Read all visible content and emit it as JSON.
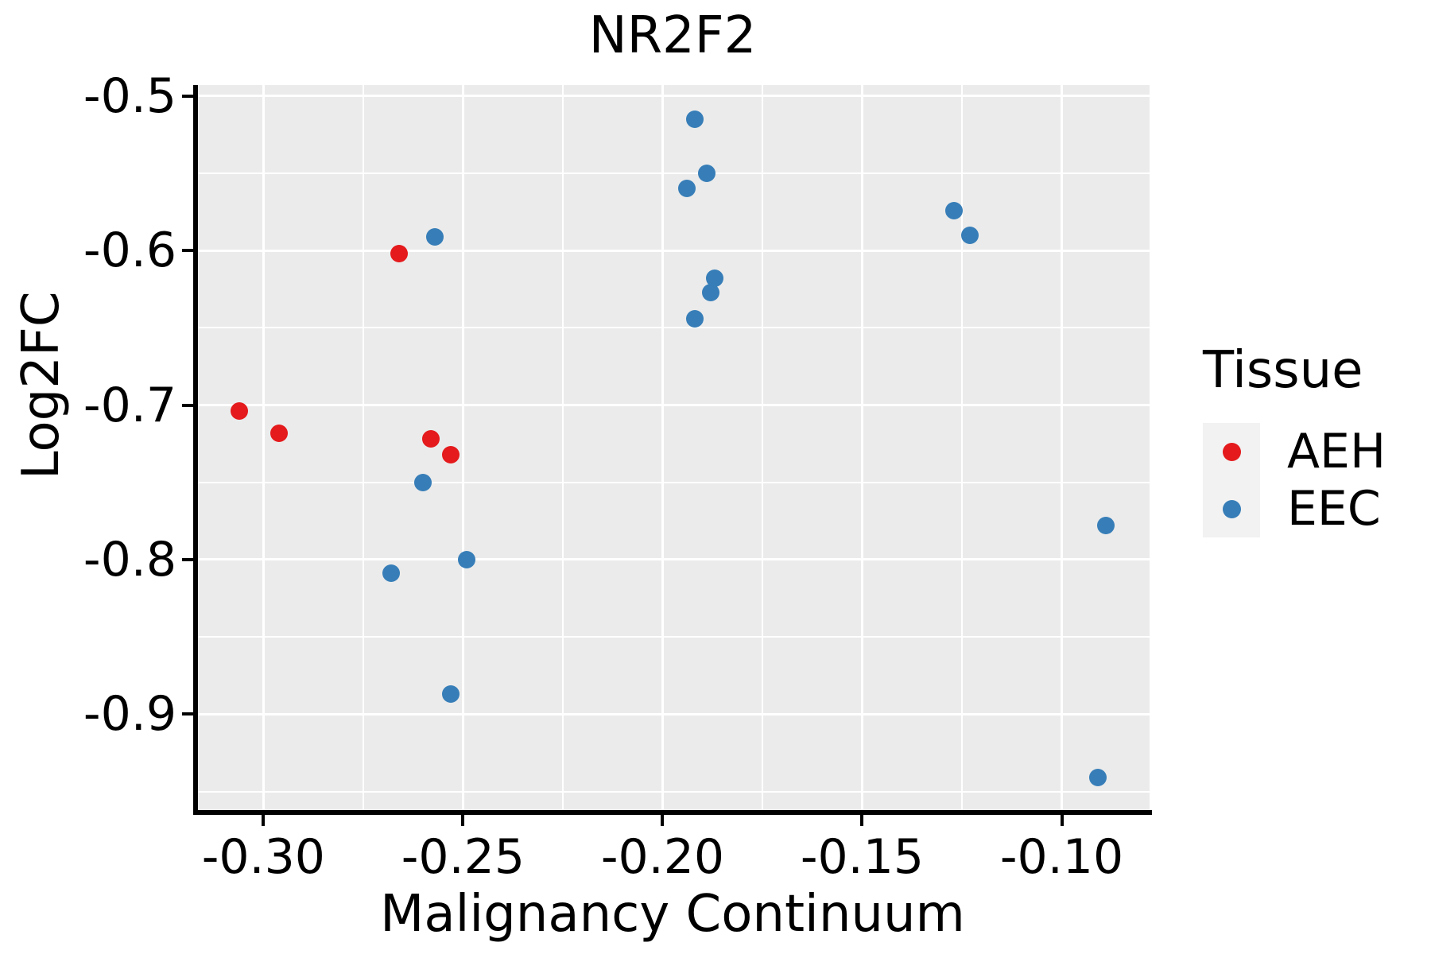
{
  "title": "NR2F2",
  "legend": {
    "title": "Tissue",
    "entries": [
      {
        "label": "AEH",
        "color": "#E41A1C"
      },
      {
        "label": "EEC",
        "color": "#377EB8"
      }
    ]
  },
  "chart_data": {
    "type": "scatter",
    "title": "NR2F2",
    "xlabel": "Malignancy Continuum",
    "ylabel": "Log2FC",
    "xlim": [
      -0.317,
      -0.078
    ],
    "ylim": [
      -0.962,
      -0.493
    ],
    "grid": "on",
    "panel_background": "#EBEBEB",
    "gridline_color": "#ffffff",
    "legend_position": "right",
    "x_major_ticks": {
      "values": [
        -0.3,
        -0.25,
        -0.2,
        -0.15,
        -0.1
      ],
      "labels": [
        "-0.30",
        "-0.25",
        "-0.20",
        "-0.15",
        "-0.10"
      ]
    },
    "x_minor_ticks": [
      -0.275,
      -0.225,
      -0.175,
      -0.125
    ],
    "y_major_ticks": {
      "values": [
        -0.5,
        -0.6,
        -0.7,
        -0.8,
        -0.9
      ],
      "labels": [
        "-0.5",
        "-0.6",
        "-0.7",
        "-0.8",
        "-0.9"
      ]
    },
    "y_minor_ticks": [
      -0.55,
      -0.65,
      -0.75,
      -0.85,
      -0.95
    ],
    "series": [
      {
        "name": "AEH",
        "color": "#E41A1C",
        "points": [
          {
            "x": -0.306,
            "y": -0.704
          },
          {
            "x": -0.296,
            "y": -0.718
          },
          {
            "x": -0.266,
            "y": -0.602
          },
          {
            "x": -0.258,
            "y": -0.722
          },
          {
            "x": -0.253,
            "y": -0.732
          }
        ]
      },
      {
        "name": "EEC",
        "color": "#377EB8",
        "points": [
          {
            "x": -0.257,
            "y": -0.591
          },
          {
            "x": -0.192,
            "y": -0.515
          },
          {
            "x": -0.194,
            "y": -0.56
          },
          {
            "x": -0.189,
            "y": -0.55
          },
          {
            "x": -0.187,
            "y": -0.618
          },
          {
            "x": -0.188,
            "y": -0.627
          },
          {
            "x": -0.192,
            "y": -0.644
          },
          {
            "x": -0.127,
            "y": -0.574
          },
          {
            "x": -0.123,
            "y": -0.59
          },
          {
            "x": -0.26,
            "y": -0.75
          },
          {
            "x": -0.268,
            "y": -0.809
          },
          {
            "x": -0.249,
            "y": -0.8
          },
          {
            "x": -0.253,
            "y": -0.887
          },
          {
            "x": -0.089,
            "y": -0.778
          },
          {
            "x": -0.091,
            "y": -0.941
          }
        ]
      }
    ]
  }
}
